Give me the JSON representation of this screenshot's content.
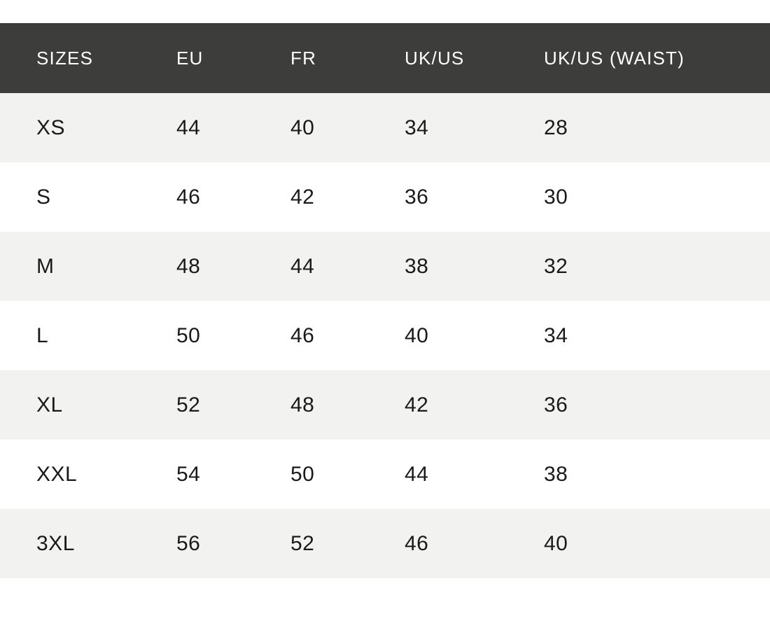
{
  "colors": {
    "header_bg": "#3d3d3c",
    "header_text": "#ffffff",
    "row_alt_bg": "#f2f2f0",
    "row_bg": "#ffffff",
    "body_text": "#1a1a1a"
  },
  "table": {
    "columns": [
      {
        "label": "SIZES"
      },
      {
        "label": "EU"
      },
      {
        "label": "FR"
      },
      {
        "label": "UK/US"
      },
      {
        "label": "UK/US (WAIST)"
      }
    ],
    "rows": [
      {
        "size": "XS",
        "eu": "44",
        "fr": "40",
        "ukus": "34",
        "ukus_waist": "28"
      },
      {
        "size": "S",
        "eu": "46",
        "fr": "42",
        "ukus": "36",
        "ukus_waist": "30"
      },
      {
        "size": "M",
        "eu": "48",
        "fr": "44",
        "ukus": "38",
        "ukus_waist": "32"
      },
      {
        "size": "L",
        "eu": "50",
        "fr": "46",
        "ukus": "40",
        "ukus_waist": "34"
      },
      {
        "size": "XL",
        "eu": "52",
        "fr": "48",
        "ukus": "42",
        "ukus_waist": "36"
      },
      {
        "size": "XXL",
        "eu": "54",
        "fr": "50",
        "ukus": "44",
        "ukus_waist": "38"
      },
      {
        "size": "3XL",
        "eu": "56",
        "fr": "52",
        "ukus": "46",
        "ukus_waist": "40"
      }
    ]
  }
}
